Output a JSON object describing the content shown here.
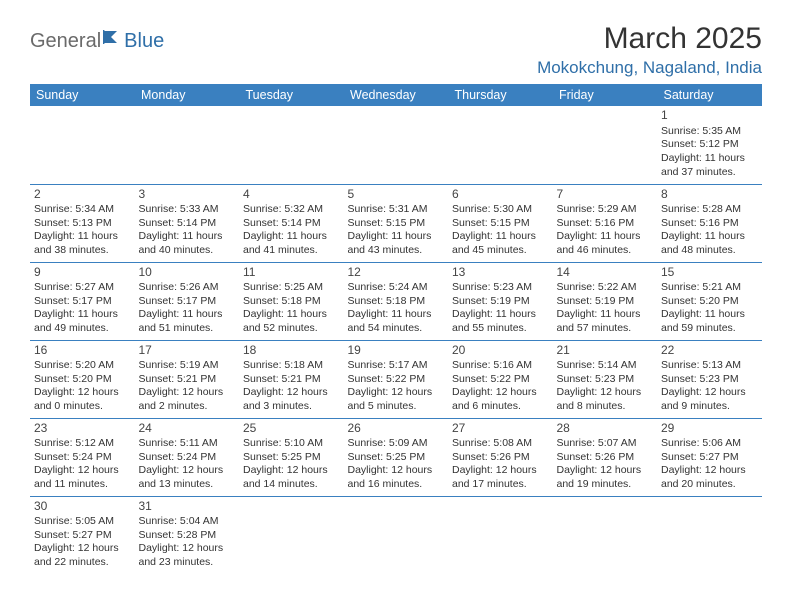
{
  "logo": {
    "text1": "General",
    "text2": "Blue"
  },
  "title": "March 2025",
  "location": "Mokokchung, Nagaland, India",
  "colors": {
    "header_bg": "#3a80c0",
    "header_fg": "#ffffff",
    "accent": "#2f6fa8",
    "border": "#3a80c0",
    "text": "#333333"
  },
  "weekdays": [
    "Sunday",
    "Monday",
    "Tuesday",
    "Wednesday",
    "Thursday",
    "Friday",
    "Saturday"
  ],
  "layout": {
    "first_weekday_index": 6,
    "weeks": 6
  },
  "days": [
    {
      "n": 1,
      "sunrise": "5:35 AM",
      "sunset": "5:12 PM",
      "daylight": "11 hours and 37 minutes."
    },
    {
      "n": 2,
      "sunrise": "5:34 AM",
      "sunset": "5:13 PM",
      "daylight": "11 hours and 38 minutes."
    },
    {
      "n": 3,
      "sunrise": "5:33 AM",
      "sunset": "5:14 PM",
      "daylight": "11 hours and 40 minutes."
    },
    {
      "n": 4,
      "sunrise": "5:32 AM",
      "sunset": "5:14 PM",
      "daylight": "11 hours and 41 minutes."
    },
    {
      "n": 5,
      "sunrise": "5:31 AM",
      "sunset": "5:15 PM",
      "daylight": "11 hours and 43 minutes."
    },
    {
      "n": 6,
      "sunrise": "5:30 AM",
      "sunset": "5:15 PM",
      "daylight": "11 hours and 45 minutes."
    },
    {
      "n": 7,
      "sunrise": "5:29 AM",
      "sunset": "5:16 PM",
      "daylight": "11 hours and 46 minutes."
    },
    {
      "n": 8,
      "sunrise": "5:28 AM",
      "sunset": "5:16 PM",
      "daylight": "11 hours and 48 minutes."
    },
    {
      "n": 9,
      "sunrise": "5:27 AM",
      "sunset": "5:17 PM",
      "daylight": "11 hours and 49 minutes."
    },
    {
      "n": 10,
      "sunrise": "5:26 AM",
      "sunset": "5:17 PM",
      "daylight": "11 hours and 51 minutes."
    },
    {
      "n": 11,
      "sunrise": "5:25 AM",
      "sunset": "5:18 PM",
      "daylight": "11 hours and 52 minutes."
    },
    {
      "n": 12,
      "sunrise": "5:24 AM",
      "sunset": "5:18 PM",
      "daylight": "11 hours and 54 minutes."
    },
    {
      "n": 13,
      "sunrise": "5:23 AM",
      "sunset": "5:19 PM",
      "daylight": "11 hours and 55 minutes."
    },
    {
      "n": 14,
      "sunrise": "5:22 AM",
      "sunset": "5:19 PM",
      "daylight": "11 hours and 57 minutes."
    },
    {
      "n": 15,
      "sunrise": "5:21 AM",
      "sunset": "5:20 PM",
      "daylight": "11 hours and 59 minutes."
    },
    {
      "n": 16,
      "sunrise": "5:20 AM",
      "sunset": "5:20 PM",
      "daylight": "12 hours and 0 minutes."
    },
    {
      "n": 17,
      "sunrise": "5:19 AM",
      "sunset": "5:21 PM",
      "daylight": "12 hours and 2 minutes."
    },
    {
      "n": 18,
      "sunrise": "5:18 AM",
      "sunset": "5:21 PM",
      "daylight": "12 hours and 3 minutes."
    },
    {
      "n": 19,
      "sunrise": "5:17 AM",
      "sunset": "5:22 PM",
      "daylight": "12 hours and 5 minutes."
    },
    {
      "n": 20,
      "sunrise": "5:16 AM",
      "sunset": "5:22 PM",
      "daylight": "12 hours and 6 minutes."
    },
    {
      "n": 21,
      "sunrise": "5:14 AM",
      "sunset": "5:23 PM",
      "daylight": "12 hours and 8 minutes."
    },
    {
      "n": 22,
      "sunrise": "5:13 AM",
      "sunset": "5:23 PM",
      "daylight": "12 hours and 9 minutes."
    },
    {
      "n": 23,
      "sunrise": "5:12 AM",
      "sunset": "5:24 PM",
      "daylight": "12 hours and 11 minutes."
    },
    {
      "n": 24,
      "sunrise": "5:11 AM",
      "sunset": "5:24 PM",
      "daylight": "12 hours and 13 minutes."
    },
    {
      "n": 25,
      "sunrise": "5:10 AM",
      "sunset": "5:25 PM",
      "daylight": "12 hours and 14 minutes."
    },
    {
      "n": 26,
      "sunrise": "5:09 AM",
      "sunset": "5:25 PM",
      "daylight": "12 hours and 16 minutes."
    },
    {
      "n": 27,
      "sunrise": "5:08 AM",
      "sunset": "5:26 PM",
      "daylight": "12 hours and 17 minutes."
    },
    {
      "n": 28,
      "sunrise": "5:07 AM",
      "sunset": "5:26 PM",
      "daylight": "12 hours and 19 minutes."
    },
    {
      "n": 29,
      "sunrise": "5:06 AM",
      "sunset": "5:27 PM",
      "daylight": "12 hours and 20 minutes."
    },
    {
      "n": 30,
      "sunrise": "5:05 AM",
      "sunset": "5:27 PM",
      "daylight": "12 hours and 22 minutes."
    },
    {
      "n": 31,
      "sunrise": "5:04 AM",
      "sunset": "5:28 PM",
      "daylight": "12 hours and 23 minutes."
    }
  ],
  "labels": {
    "sunrise": "Sunrise:",
    "sunset": "Sunset:",
    "daylight": "Daylight:"
  }
}
